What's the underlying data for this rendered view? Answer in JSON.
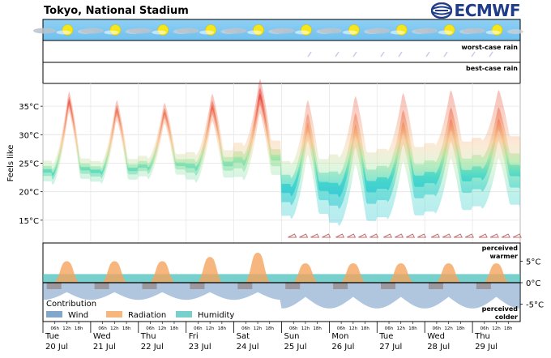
{
  "header": {
    "title": "Tokyo, National Stadium",
    "logo_text": "ECMWF"
  },
  "panels": {
    "worst_case_rain": "worst-case rain",
    "best_case_rain": "best-case rain",
    "perceived_warmer": [
      "perceived",
      "warmer"
    ],
    "perceived_colder": [
      "perceived",
      "colder"
    ]
  },
  "chart_data": {
    "type": "area",
    "title": "Tokyo, National Stadium",
    "ylabel": "Feels like",
    "ylim": [
      11,
      39
    ],
    "yticks": [
      "15°C",
      "20°C",
      "25°C",
      "30°C",
      "35°C"
    ],
    "ytick_values": [
      15,
      20,
      25,
      30,
      35
    ],
    "grid": true,
    "days": [
      {
        "day": "Tue",
        "date": "20 Jul"
      },
      {
        "day": "Wed",
        "date": "21 Jul"
      },
      {
        "day": "Thu",
        "date": "22 Jul"
      },
      {
        "day": "Fri",
        "date": "23 Jul"
      },
      {
        "day": "Sat",
        "date": "24 Jul"
      },
      {
        "day": "Sun",
        "date": "25 Jul"
      },
      {
        "day": "Mon",
        "date": "26 Jul"
      },
      {
        "day": "Tue",
        "date": "27 Jul"
      },
      {
        "day": "Wed",
        "date": "28 Jul"
      },
      {
        "day": "Thu",
        "date": "29 Jul"
      }
    ],
    "hour_ticks": [
      "06h",
      "12h",
      "18h"
    ],
    "feels_like_series": {
      "name": "Feels like",
      "daily_max": [
        36,
        34.5,
        34,
        35,
        37,
        31.5,
        31,
        31.5,
        32,
        32
      ],
      "daily_min": [
        23,
        23,
        24,
        24,
        25,
        20,
        20,
        21,
        22,
        23
      ],
      "spread": [
        1.5,
        1.5,
        1.5,
        2,
        2.5,
        4,
        5,
        5,
        5,
        5
      ]
    },
    "contribution": {
      "title": "Contribution",
      "legend": [
        {
          "name": "Wind",
          "color": "#4f80b5"
        },
        {
          "name": "Radiation",
          "color": "#f5a45c"
        },
        {
          "name": "Humidity",
          "color": "#3fbcb8"
        }
      ],
      "yticks": [
        "5°C",
        "0°C",
        "-5°C"
      ],
      "ytick_values": [
        5,
        0,
        -5
      ],
      "ylim": [
        -8,
        8
      ],
      "radiation_peak": [
        5,
        5,
        5,
        6,
        7,
        4.5,
        4.5,
        4.5,
        4.5,
        4.5
      ],
      "humidity": [
        2,
        2,
        2,
        2,
        2,
        2,
        2,
        2,
        2,
        2
      ],
      "wind_min": [
        -4,
        -4,
        -4,
        -4,
        -4,
        -6,
        -6,
        -6,
        -6,
        -6
      ]
    }
  }
}
